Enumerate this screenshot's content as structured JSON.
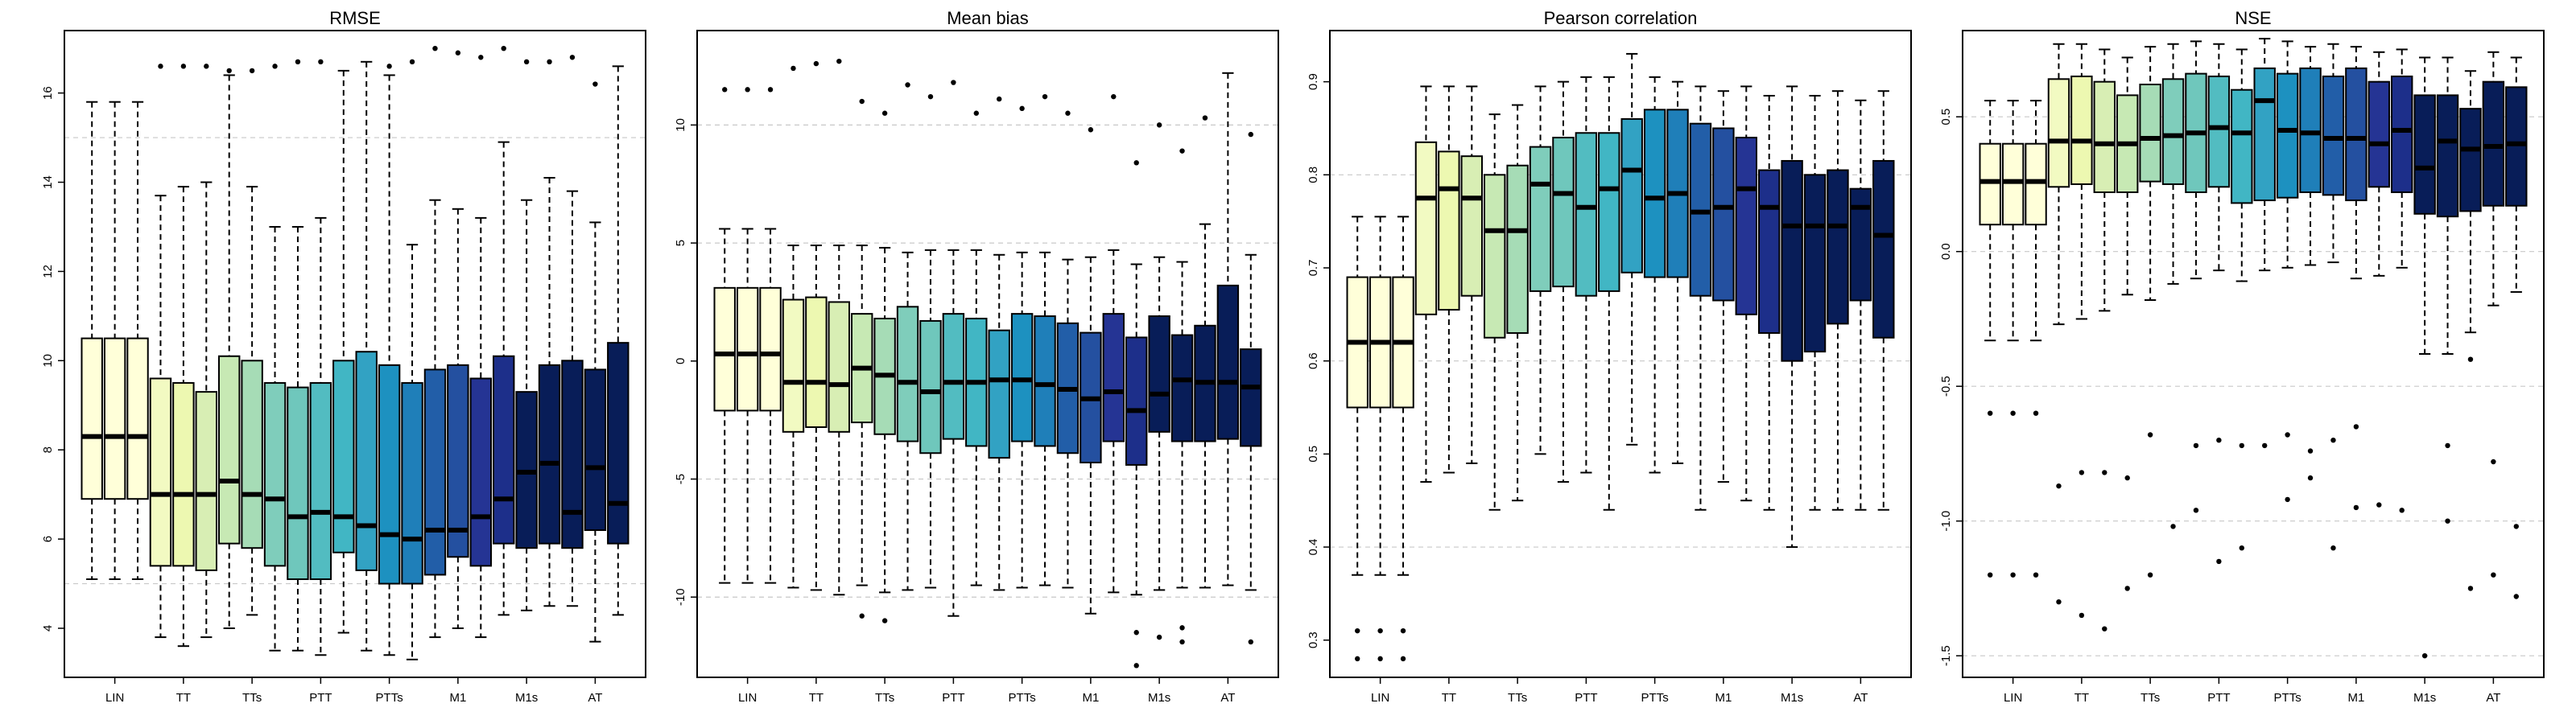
{
  "figure": {
    "categories": [
      "LIN",
      "TT",
      "TTs",
      "PTT",
      "PTTs",
      "M1",
      "M1s",
      "AT"
    ],
    "colors": [
      "#ffffd9",
      "#ffffd9",
      "#ffffd9",
      "#f2fac2",
      "#edf8b1",
      "#d8eeb4",
      "#c7e9b4",
      "#a6dcb6",
      "#7fcdbb",
      "#6fc7bc",
      "#52bcc1",
      "#41b6c4",
      "#32a2c3",
      "#1d91c0",
      "#1f7fb9",
      "#225ea8",
      "#2450a0",
      "#253494",
      "#1d2f8a",
      "#081d58"
    ]
  },
  "chart_data": [
    {
      "type": "box",
      "title": "RMSE",
      "ylim": [
        2.9,
        17.4
      ],
      "yticks": [
        4,
        6,
        8,
        10,
        12,
        14,
        16
      ],
      "grid_lines": [
        5,
        15
      ],
      "boxes": [
        {
          "q1": 6.9,
          "med": 8.3,
          "q3": 10.5,
          "lo": 5.1,
          "hi": 15.8,
          "out": []
        },
        {
          "q1": 6.9,
          "med": 8.3,
          "q3": 10.5,
          "lo": 5.1,
          "hi": 15.8,
          "out": []
        },
        {
          "q1": 6.9,
          "med": 8.3,
          "q3": 10.5,
          "lo": 5.1,
          "hi": 15.8,
          "out": []
        },
        {
          "q1": 5.4,
          "med": 7.0,
          "q3": 9.6,
          "lo": 3.8,
          "hi": 13.7,
          "out": [
            16.6
          ]
        },
        {
          "q1": 5.4,
          "med": 7.0,
          "q3": 9.5,
          "lo": 3.6,
          "hi": 13.9,
          "out": [
            16.6
          ]
        },
        {
          "q1": 5.3,
          "med": 7.0,
          "q3": 9.3,
          "lo": 3.8,
          "hi": 14.0,
          "out": [
            16.6
          ]
        },
        {
          "q1": 5.9,
          "med": 7.3,
          "q3": 10.1,
          "lo": 4.0,
          "hi": 16.4,
          "out": [
            16.5
          ]
        },
        {
          "q1": 5.8,
          "med": 7.0,
          "q3": 10.0,
          "lo": 4.3,
          "hi": 13.9,
          "out": [
            16.5
          ]
        },
        {
          "q1": 5.4,
          "med": 6.9,
          "q3": 9.5,
          "lo": 3.5,
          "hi": 13.0,
          "out": [
            16.6
          ]
        },
        {
          "q1": 5.1,
          "med": 6.5,
          "q3": 9.4,
          "lo": 3.5,
          "hi": 13.0,
          "out": [
            16.7
          ]
        },
        {
          "q1": 5.1,
          "med": 6.6,
          "q3": 9.5,
          "lo": 3.4,
          "hi": 13.2,
          "out": [
            16.7
          ]
        },
        {
          "q1": 5.7,
          "med": 6.5,
          "q3": 10.0,
          "lo": 3.9,
          "hi": 16.5,
          "out": []
        },
        {
          "q1": 5.3,
          "med": 6.3,
          "q3": 10.2,
          "lo": 3.5,
          "hi": 16.7,
          "out": []
        },
        {
          "q1": 5.0,
          "med": 6.1,
          "q3": 9.9,
          "lo": 3.4,
          "hi": 16.4,
          "out": [
            16.6
          ]
        },
        {
          "q1": 5.0,
          "med": 6.0,
          "q3": 9.5,
          "lo": 3.3,
          "hi": 12.6,
          "out": [
            16.7
          ]
        },
        {
          "q1": 5.2,
          "med": 6.2,
          "q3": 9.8,
          "lo": 3.8,
          "hi": 13.6,
          "out": [
            17.0
          ]
        },
        {
          "q1": 5.6,
          "med": 6.2,
          "q3": 9.9,
          "lo": 4.0,
          "hi": 13.4,
          "out": [
            16.9
          ]
        },
        {
          "q1": 5.4,
          "med": 6.5,
          "q3": 9.6,
          "lo": 3.8,
          "hi": 13.2,
          "out": [
            16.8
          ]
        },
        {
          "q1": 5.9,
          "med": 6.9,
          "q3": 10.1,
          "lo": 4.3,
          "hi": 14.9,
          "out": [
            17.0
          ]
        },
        {
          "q1": 5.8,
          "med": 7.5,
          "q3": 9.3,
          "lo": 4.4,
          "hi": 13.6,
          "out": [
            16.7
          ]
        }
      ],
      "extra_boxes": [
        {
          "q1": 5.9,
          "med": 7.7,
          "q3": 9.9,
          "lo": 4.5,
          "hi": 14.1,
          "out": [
            16.7
          ]
        },
        {
          "q1": 5.8,
          "med": 6.6,
          "q3": 10.0,
          "lo": 4.5,
          "hi": 13.8,
          "out": [
            16.8
          ]
        },
        {
          "q1": 6.2,
          "med": 7.6,
          "q3": 9.8,
          "lo": 3.7,
          "hi": 13.1,
          "out": [
            16.2
          ]
        },
        {
          "q1": 5.9,
          "med": 6.8,
          "q3": 10.4,
          "lo": 4.3,
          "hi": 16.6,
          "out": []
        }
      ]
    },
    {
      "type": "box",
      "title": "Mean bias",
      "ylim": [
        -13.4,
        14.0
      ],
      "yticks": [
        -10,
        -5,
        0,
        5,
        10
      ],
      "grid_lines": [
        -10,
        -5,
        5,
        10
      ],
      "boxes": [
        {
          "q1": -2.1,
          "med": 0.3,
          "q3": 3.1,
          "lo": -9.4,
          "hi": 5.6,
          "out": [
            11.5
          ]
        },
        {
          "q1": -2.1,
          "med": 0.3,
          "q3": 3.1,
          "lo": -9.4,
          "hi": 5.6,
          "out": [
            11.5
          ]
        },
        {
          "q1": -2.1,
          "med": 0.3,
          "q3": 3.1,
          "lo": -9.4,
          "hi": 5.6,
          "out": [
            11.5
          ]
        },
        {
          "q1": -3.0,
          "med": -0.9,
          "q3": 2.6,
          "lo": -9.6,
          "hi": 4.9,
          "out": [
            12.4
          ]
        },
        {
          "q1": -2.8,
          "med": -0.9,
          "q3": 2.7,
          "lo": -9.7,
          "hi": 4.9,
          "out": [
            12.6
          ]
        },
        {
          "q1": -3.0,
          "med": -1.0,
          "q3": 2.5,
          "lo": -9.9,
          "hi": 4.9,
          "out": [
            12.7
          ]
        },
        {
          "q1": -2.6,
          "med": -0.3,
          "q3": 2.0,
          "lo": -9.5,
          "hi": 4.9,
          "out": [
            11.0,
            -10.8
          ]
        },
        {
          "q1": -3.1,
          "med": -0.6,
          "q3": 1.8,
          "lo": -9.8,
          "hi": 4.8,
          "out": [
            10.5,
            -11.0
          ]
        },
        {
          "q1": -3.4,
          "med": -0.9,
          "q3": 2.3,
          "lo": -9.7,
          "hi": 4.6,
          "out": [
            11.7
          ]
        },
        {
          "q1": -3.9,
          "med": -1.3,
          "q3": 1.7,
          "lo": -9.6,
          "hi": 4.7,
          "out": [
            11.2
          ]
        },
        {
          "q1": -3.3,
          "med": -0.9,
          "q3": 2.0,
          "lo": -10.8,
          "hi": 4.7,
          "out": [
            11.8
          ]
        },
        {
          "q1": -3.6,
          "med": -0.9,
          "q3": 1.8,
          "lo": -9.5,
          "hi": 4.7,
          "out": [
            10.5
          ]
        },
        {
          "q1": -4.1,
          "med": -0.8,
          "q3": 1.3,
          "lo": -9.7,
          "hi": 4.5,
          "out": [
            11.1
          ]
        },
        {
          "q1": -3.4,
          "med": -0.8,
          "q3": 2.0,
          "lo": -9.6,
          "hi": 4.6,
          "out": [
            10.7
          ]
        },
        {
          "q1": -3.6,
          "med": -1.0,
          "q3": 1.9,
          "lo": -9.5,
          "hi": 4.6,
          "out": [
            11.2
          ]
        },
        {
          "q1": -3.9,
          "med": -1.2,
          "q3": 1.6,
          "lo": -9.6,
          "hi": 4.3,
          "out": [
            10.5
          ]
        },
        {
          "q1": -4.3,
          "med": -1.6,
          "q3": 1.2,
          "lo": -10.7,
          "hi": 4.4,
          "out": [
            9.8
          ]
        },
        {
          "q1": -3.4,
          "med": -1.3,
          "q3": 2.0,
          "lo": -9.8,
          "hi": 4.7,
          "out": [
            11.2
          ]
        },
        {
          "q1": -4.4,
          "med": -2.1,
          "q3": 1.0,
          "lo": -9.9,
          "hi": 4.1,
          "out": [
            -11.5,
            -12.9,
            8.4
          ]
        },
        {
          "q1": -3.0,
          "med": -1.4,
          "q3": 1.9,
          "lo": -9.7,
          "hi": 4.4,
          "out": [
            10.0,
            -11.7
          ]
        }
      ],
      "extra_boxes": [
        {
          "q1": -3.4,
          "med": -0.8,
          "q3": 1.1,
          "lo": -9.6,
          "hi": 4.2,
          "out": [
            -11.3,
            8.9,
            -11.9
          ]
        },
        {
          "q1": -3.4,
          "med": -0.9,
          "q3": 1.5,
          "lo": -9.6,
          "hi": 5.8,
          "out": [
            10.3
          ]
        },
        {
          "q1": -3.3,
          "med": -0.9,
          "q3": 3.2,
          "lo": -9.5,
          "hi": 12.2,
          "out": []
        },
        {
          "q1": -3.6,
          "med": -1.1,
          "q3": 0.5,
          "lo": -9.7,
          "hi": 4.5,
          "out": [
            9.6,
            -11.9
          ]
        }
      ]
    },
    {
      "type": "box",
      "title": "Pearson correlation",
      "ylim": [
        0.26,
        0.955
      ],
      "yticks": [
        0.3,
        0.4,
        0.5,
        0.6,
        0.7,
        0.8,
        0.9
      ],
      "grid_lines": [
        0.4,
        0.6,
        0.8
      ],
      "boxes": [
        {
          "q1": 0.55,
          "med": 0.62,
          "q3": 0.69,
          "lo": 0.37,
          "hi": 0.755,
          "out": [
            0.31,
            0.28
          ]
        },
        {
          "q1": 0.55,
          "med": 0.62,
          "q3": 0.69,
          "lo": 0.37,
          "hi": 0.755,
          "out": [
            0.31,
            0.28
          ]
        },
        {
          "q1": 0.55,
          "med": 0.62,
          "q3": 0.69,
          "lo": 0.37,
          "hi": 0.755,
          "out": [
            0.31,
            0.28
          ]
        },
        {
          "q1": 0.65,
          "med": 0.775,
          "q3": 0.835,
          "lo": 0.47,
          "hi": 0.895,
          "out": []
        },
        {
          "q1": 0.655,
          "med": 0.785,
          "q3": 0.825,
          "lo": 0.48,
          "hi": 0.895,
          "out": []
        },
        {
          "q1": 0.67,
          "med": 0.775,
          "q3": 0.82,
          "lo": 0.49,
          "hi": 0.895,
          "out": []
        },
        {
          "q1": 0.625,
          "med": 0.74,
          "q3": 0.8,
          "lo": 0.44,
          "hi": 0.865,
          "out": []
        },
        {
          "q1": 0.63,
          "med": 0.74,
          "q3": 0.81,
          "lo": 0.45,
          "hi": 0.875,
          "out": []
        },
        {
          "q1": 0.675,
          "med": 0.79,
          "q3": 0.83,
          "lo": 0.5,
          "hi": 0.895,
          "out": []
        },
        {
          "q1": 0.68,
          "med": 0.78,
          "q3": 0.84,
          "lo": 0.47,
          "hi": 0.9,
          "out": []
        },
        {
          "q1": 0.67,
          "med": 0.765,
          "q3": 0.845,
          "lo": 0.48,
          "hi": 0.905,
          "out": []
        },
        {
          "q1": 0.675,
          "med": 0.785,
          "q3": 0.845,
          "lo": 0.44,
          "hi": 0.905,
          "out": []
        },
        {
          "q1": 0.695,
          "med": 0.805,
          "q3": 0.86,
          "lo": 0.51,
          "hi": 0.93,
          "out": []
        },
        {
          "q1": 0.69,
          "med": 0.775,
          "q3": 0.87,
          "lo": 0.48,
          "hi": 0.905,
          "out": []
        },
        {
          "q1": 0.69,
          "med": 0.78,
          "q3": 0.87,
          "lo": 0.49,
          "hi": 0.9,
          "out": []
        },
        {
          "q1": 0.67,
          "med": 0.76,
          "q3": 0.855,
          "lo": 0.44,
          "hi": 0.895,
          "out": []
        },
        {
          "q1": 0.665,
          "med": 0.765,
          "q3": 0.85,
          "lo": 0.47,
          "hi": 0.89,
          "out": []
        },
        {
          "q1": 0.65,
          "med": 0.785,
          "q3": 0.84,
          "lo": 0.45,
          "hi": 0.895,
          "out": []
        },
        {
          "q1": 0.63,
          "med": 0.765,
          "q3": 0.805,
          "lo": 0.44,
          "hi": 0.885,
          "out": []
        },
        {
          "q1": 0.6,
          "med": 0.745,
          "q3": 0.815,
          "lo": 0.4,
          "hi": 0.895,
          "out": []
        }
      ],
      "extra_boxes": [
        {
          "q1": 0.61,
          "med": 0.745,
          "q3": 0.8,
          "lo": 0.44,
          "hi": 0.885,
          "out": []
        },
        {
          "q1": 0.64,
          "med": 0.745,
          "q3": 0.805,
          "lo": 0.44,
          "hi": 0.89,
          "out": []
        },
        {
          "q1": 0.665,
          "med": 0.765,
          "q3": 0.785,
          "lo": 0.44,
          "hi": 0.88,
          "out": []
        },
        {
          "q1": 0.625,
          "med": 0.735,
          "q3": 0.815,
          "lo": 0.44,
          "hi": 0.89,
          "out": []
        }
      ]
    },
    {
      "type": "box",
      "title": "NSE",
      "ylim": [
        -1.58,
        0.82
      ],
      "yticks": [
        -1.5,
        -1.0,
        -0.5,
        0.0,
        0.5
      ],
      "grid_lines": [
        -1.5,
        -1.0,
        -0.5,
        0.0,
        0.5
      ],
      "boxes": [
        {
          "q1": 0.1,
          "med": 0.26,
          "q3": 0.4,
          "lo": -0.33,
          "hi": 0.56,
          "out": [
            -0.6,
            -1.2
          ]
        },
        {
          "q1": 0.1,
          "med": 0.26,
          "q3": 0.4,
          "lo": -0.33,
          "hi": 0.56,
          "out": [
            -0.6,
            -1.2
          ]
        },
        {
          "q1": 0.1,
          "med": 0.26,
          "q3": 0.4,
          "lo": -0.33,
          "hi": 0.56,
          "out": [
            -0.6,
            -1.2
          ]
        },
        {
          "q1": 0.24,
          "med": 0.41,
          "q3": 0.64,
          "lo": -0.27,
          "hi": 0.77,
          "out": [
            -0.87,
            -1.3
          ]
        },
        {
          "q1": 0.25,
          "med": 0.41,
          "q3": 0.65,
          "lo": -0.25,
          "hi": 0.77,
          "out": [
            -0.82,
            -1.35
          ]
        },
        {
          "q1": 0.22,
          "med": 0.4,
          "q3": 0.63,
          "lo": -0.22,
          "hi": 0.75,
          "out": [
            -0.82,
            -1.4
          ]
        },
        {
          "q1": 0.22,
          "med": 0.4,
          "q3": 0.58,
          "lo": -0.16,
          "hi": 0.72,
          "out": [
            -0.84,
            -1.25
          ]
        },
        {
          "q1": 0.26,
          "med": 0.42,
          "q3": 0.62,
          "lo": -0.18,
          "hi": 0.76,
          "out": [
            -0.68,
            -1.2
          ]
        },
        {
          "q1": 0.25,
          "med": 0.43,
          "q3": 0.64,
          "lo": -0.12,
          "hi": 0.77,
          "out": [
            -1.02
          ]
        },
        {
          "q1": 0.22,
          "med": 0.44,
          "q3": 0.66,
          "lo": -0.1,
          "hi": 0.78,
          "out": [
            -0.72,
            -0.96
          ]
        },
        {
          "q1": 0.24,
          "med": 0.46,
          "q3": 0.65,
          "lo": -0.07,
          "hi": 0.77,
          "out": [
            -0.7,
            -1.15
          ]
        },
        {
          "q1": 0.18,
          "med": 0.44,
          "q3": 0.6,
          "lo": -0.11,
          "hi": 0.75,
          "out": [
            -0.72,
            -1.1
          ]
        },
        {
          "q1": 0.19,
          "med": 0.56,
          "q3": 0.68,
          "lo": -0.07,
          "hi": 0.79,
          "out": [
            -0.72
          ]
        },
        {
          "q1": 0.2,
          "med": 0.45,
          "q3": 0.66,
          "lo": -0.06,
          "hi": 0.78,
          "out": [
            -0.68,
            -0.92
          ]
        },
        {
          "q1": 0.22,
          "med": 0.44,
          "q3": 0.68,
          "lo": -0.05,
          "hi": 0.76,
          "out": [
            -0.74,
            -0.84
          ]
        },
        {
          "q1": 0.21,
          "med": 0.42,
          "q3": 0.65,
          "lo": -0.04,
          "hi": 0.77,
          "out": [
            -0.7,
            -1.1
          ]
        },
        {
          "q1": 0.19,
          "med": 0.42,
          "q3": 0.68,
          "lo": -0.1,
          "hi": 0.76,
          "out": [
            -0.65,
            -0.95
          ]
        },
        {
          "q1": 0.24,
          "med": 0.4,
          "q3": 0.63,
          "lo": -0.09,
          "hi": 0.74,
          "out": [
            -0.94
          ]
        },
        {
          "q1": 0.22,
          "med": 0.45,
          "q3": 0.65,
          "lo": -0.06,
          "hi": 0.75,
          "out": [
            -0.96
          ]
        },
        {
          "q1": 0.14,
          "med": 0.31,
          "q3": 0.58,
          "lo": -0.38,
          "hi": 0.72,
          "out": [
            -1.5
          ]
        }
      ],
      "extra_boxes": [
        {
          "q1": 0.13,
          "med": 0.41,
          "q3": 0.58,
          "lo": -0.38,
          "hi": 0.72,
          "out": [
            -0.72,
            -1.0
          ]
        },
        {
          "q1": 0.15,
          "med": 0.38,
          "q3": 0.53,
          "lo": -0.3,
          "hi": 0.67,
          "out": [
            -0.4,
            -1.25
          ]
        },
        {
          "q1": 0.17,
          "med": 0.39,
          "q3": 0.63,
          "lo": -0.2,
          "hi": 0.74,
          "out": [
            -0.78,
            -1.2
          ]
        },
        {
          "q1": 0.17,
          "med": 0.4,
          "q3": 0.61,
          "lo": -0.15,
          "hi": 0.72,
          "out": [
            -1.02,
            -1.28
          ]
        }
      ]
    }
  ]
}
